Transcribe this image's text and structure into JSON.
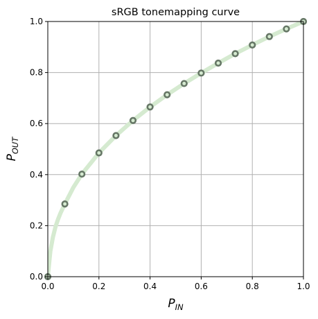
{
  "chart_data": {
    "type": "line",
    "title": "sRGB tonemapping curve",
    "xlabel": {
      "base": "P",
      "sub": "IN"
    },
    "ylabel": {
      "base": "P",
      "sub": "OUT"
    },
    "xlim": [
      0.0,
      1.0
    ],
    "ylim": [
      0.0,
      1.0
    ],
    "xticks": [
      "0.0",
      "0.2",
      "0.4",
      "0.6",
      "0.8",
      "1.0"
    ],
    "yticks": [
      "0.0",
      "0.2",
      "0.4",
      "0.6",
      "0.8",
      "1.0"
    ],
    "grid": true,
    "series": [
      {
        "kind": "curve",
        "color": "#d5ead0",
        "x": [
          0.0,
          0.01,
          0.02,
          0.03,
          0.04,
          0.05,
          0.0667,
          0.1,
          0.1333,
          0.2,
          0.2667,
          0.3333,
          0.4,
          0.4667,
          0.5333,
          0.6,
          0.6667,
          0.7333,
          0.8,
          0.8667,
          0.9333,
          1.0
        ],
        "y": [
          0.0,
          0.1,
          0.155,
          0.195,
          0.225,
          0.25,
          0.285,
          0.35,
          0.402,
          0.485,
          0.553,
          0.612,
          0.665,
          0.713,
          0.757,
          0.798,
          0.837,
          0.874,
          0.908,
          0.941,
          0.971,
          1.0
        ]
      },
      {
        "kind": "markers",
        "marker": "circle",
        "edge_color": "#667766",
        "face_color": "#d5ead0",
        "x": [
          0.0,
          0.0667,
          0.1333,
          0.2,
          0.2667,
          0.3333,
          0.4,
          0.4667,
          0.5333,
          0.6,
          0.6667,
          0.7333,
          0.8,
          0.8667,
          0.9333,
          1.0
        ],
        "y": [
          0.0,
          0.285,
          0.402,
          0.485,
          0.553,
          0.612,
          0.665,
          0.713,
          0.757,
          0.798,
          0.837,
          0.874,
          0.908,
          0.941,
          0.971,
          1.0
        ]
      }
    ]
  }
}
